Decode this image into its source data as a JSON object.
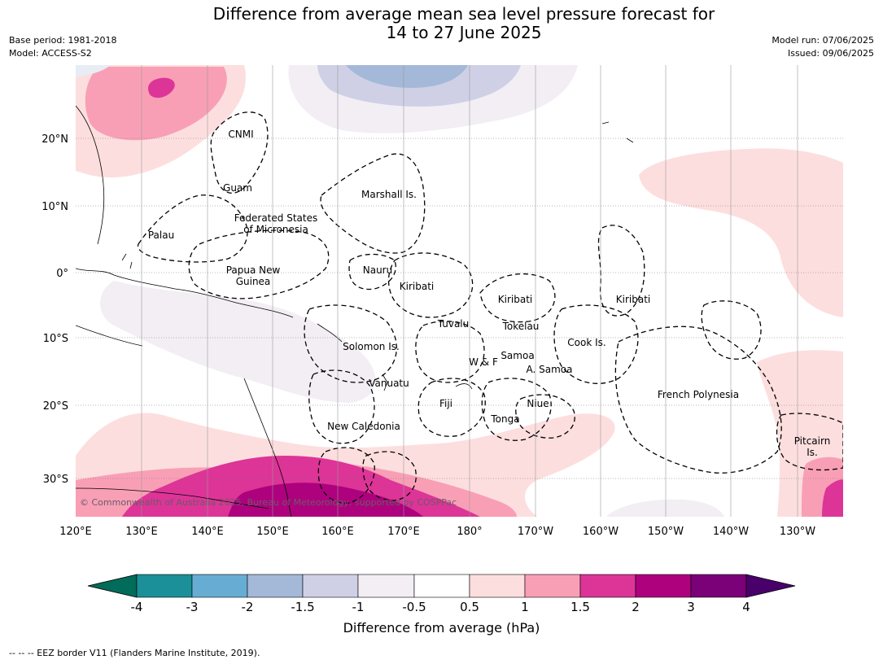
{
  "header": {
    "title_line1": "Difference from average mean sea level pressure forecast for",
    "title_line2": "14 to 27 June 2025",
    "base_period": "Base period: 1981-2018",
    "model": "Model: ACCESS-S2",
    "model_run": "Model run: 07/06/2025",
    "issued": "Issued: 09/06/2025"
  },
  "map": {
    "lon_ticks": [
      "120°E",
      "130°E",
      "140°E",
      "150°E",
      "160°E",
      "170°E",
      "180°",
      "170°W",
      "160°W",
      "150°W",
      "140°W",
      "130°W"
    ],
    "lat_ticks": [
      "20°N",
      "10°N",
      "0°",
      "10°S",
      "20°S",
      "30°S"
    ],
    "copyright": "© Commonwealth of Australia 2025, Bureau of Meteorology, supported by COSPPac",
    "regions": [
      {
        "name": "CNMI",
        "lines": [
          "CNMI"
        ]
      },
      {
        "name": "Guam",
        "lines": [
          "Guam"
        ]
      },
      {
        "name": "Marshall Is.",
        "lines": [
          "Marshall Is."
        ]
      },
      {
        "name": "Palau",
        "lines": [
          "Palau"
        ]
      },
      {
        "name": "Federated States of Micronesia",
        "lines": [
          "Federated States",
          "of Micronesia"
        ]
      },
      {
        "name": "Papua New Guinea",
        "lines": [
          "Papua New",
          "Guinea"
        ]
      },
      {
        "name": "Nauru",
        "lines": [
          "Nauru"
        ]
      },
      {
        "name": "Kiribati west",
        "lines": [
          "Kiribati"
        ]
      },
      {
        "name": "Kiribati central",
        "lines": [
          "Kiribati"
        ]
      },
      {
        "name": "Kiribati east",
        "lines": [
          "Kiribati"
        ]
      },
      {
        "name": "Tuvalu",
        "lines": [
          "Tuvalu"
        ]
      },
      {
        "name": "Tokelau",
        "lines": [
          "Tokelau"
        ]
      },
      {
        "name": "Cook Is.",
        "lines": [
          "Cook Is."
        ]
      },
      {
        "name": "Solomon Is.",
        "lines": [
          "Solomon Is."
        ]
      },
      {
        "name": "W & F",
        "lines": [
          "W & F"
        ]
      },
      {
        "name": "Samoa",
        "lines": [
          "Samoa"
        ]
      },
      {
        "name": "A. Samoa",
        "lines": [
          "A. Samoa"
        ]
      },
      {
        "name": "Vanuatu",
        "lines": [
          "Vanuatu"
        ]
      },
      {
        "name": "Fiji",
        "lines": [
          "Fiji"
        ]
      },
      {
        "name": "Niue",
        "lines": [
          "Niue"
        ]
      },
      {
        "name": "Tonga",
        "lines": [
          "Tonga"
        ]
      },
      {
        "name": "French Polynesia",
        "lines": [
          "French Polynesia"
        ]
      },
      {
        "name": "New Caledonia",
        "lines": [
          "New Caledonia"
        ]
      },
      {
        "name": "Pitcairn Is.",
        "lines": [
          "Pitcairn",
          "Is."
        ]
      }
    ]
  },
  "colorbar": {
    "ticks": [
      "-4",
      "-3",
      "-2",
      "-1.5",
      "-1",
      "-0.5",
      "0.5",
      "1",
      "1.5",
      "2",
      "3",
      "4"
    ],
    "colors": [
      "#1b9099",
      "#67add3",
      "#a4b8d8",
      "#cfd0e6",
      "#f2eef4",
      "#ffffff",
      "#fddede",
      "#f89fb6",
      "#dd3497",
      "#ae017e",
      "#7a0177"
    ],
    "low_extend_color": "#016c59",
    "high_extend_color": "#49006a",
    "label": "Difference from average (hPa)"
  },
  "footer": {
    "eez_legend": "--  --  -- EEZ border V11 (Flanders Marine Institute, 2019)."
  }
}
